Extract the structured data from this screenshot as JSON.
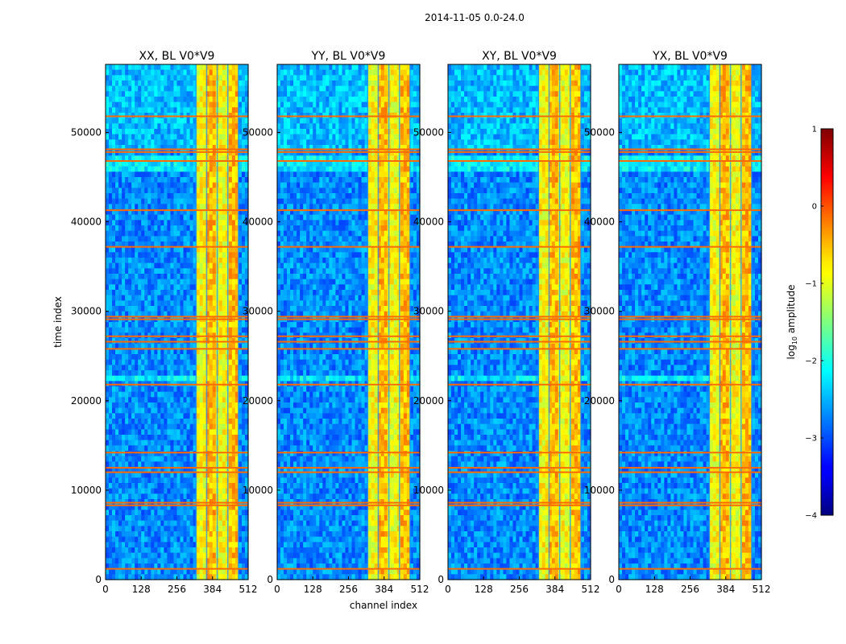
{
  "figure": {
    "suptitle": "2014-11-05 0.0-24.0",
    "xlabel": "channel index",
    "ylabel": "time index"
  },
  "chart_data": {
    "type": "heatmap",
    "colormap": "jet",
    "panels": [
      {
        "title": "XX, BL V0*V9",
        "x_ticks": [
          "0",
          "128",
          "256",
          "384",
          "512"
        ],
        "y_ticks": [
          "0",
          "10000",
          "20000",
          "30000",
          "40000",
          "50000"
        ],
        "xlim": [
          0,
          512
        ],
        "ylim": [
          0,
          57600
        ]
      },
      {
        "title": "YY, BL V0*V9",
        "x_ticks": [
          "0",
          "128",
          "256",
          "384",
          "512"
        ],
        "y_ticks": [
          "0",
          "10000",
          "20000",
          "30000",
          "40000",
          "50000"
        ],
        "xlim": [
          0,
          512
        ],
        "ylim": [
          0,
          57600
        ]
      },
      {
        "title": "XY, BL V0*V9",
        "x_ticks": [
          "0",
          "128",
          "256",
          "384",
          "512"
        ],
        "y_ticks": [
          "0",
          "10000",
          "20000",
          "30000",
          "40000",
          "50000"
        ],
        "xlim": [
          0,
          512
        ],
        "ylim": [
          0,
          57600
        ]
      },
      {
        "title": "YX, BL V0*V9",
        "x_ticks": [
          "0",
          "128",
          "256",
          "384",
          "512"
        ],
        "y_ticks": [
          "0",
          "10000",
          "20000",
          "30000",
          "40000",
          "50000"
        ],
        "xlim": [
          0,
          512
        ],
        "ylim": [
          0,
          57600
        ]
      }
    ],
    "colorbar": {
      "label": "log10 amplitude",
      "label_main": "log",
      "label_sub": "10",
      "label_rest": " amplitude",
      "ticks": [
        "1",
        "0",
        "−1",
        "−2",
        "−3",
        "−4"
      ],
      "vmin": -4,
      "vmax": 1
    },
    "features": {
      "high_amplitude_channel_band": [
        325,
        480
      ],
      "bright_rfi_time_rows": [
        1200,
        8300,
        8600,
        12000,
        12500,
        14200,
        21800,
        25800,
        26600,
        27200,
        29100,
        29400,
        37200,
        41300,
        46800,
        47800,
        48100,
        51800
      ],
      "dark_band_time_range": [
        0,
        45000
      ],
      "light_band_time_ranges": [
        [
          45500,
          47300
        ],
        [
          22000,
          22600
        ]
      ]
    }
  },
  "colors": {
    "jet_low": "#00007f",
    "jet_mid": "#7fff7f",
    "jet_high": "#7f0000",
    "rfi_line": "#ff6a00"
  }
}
